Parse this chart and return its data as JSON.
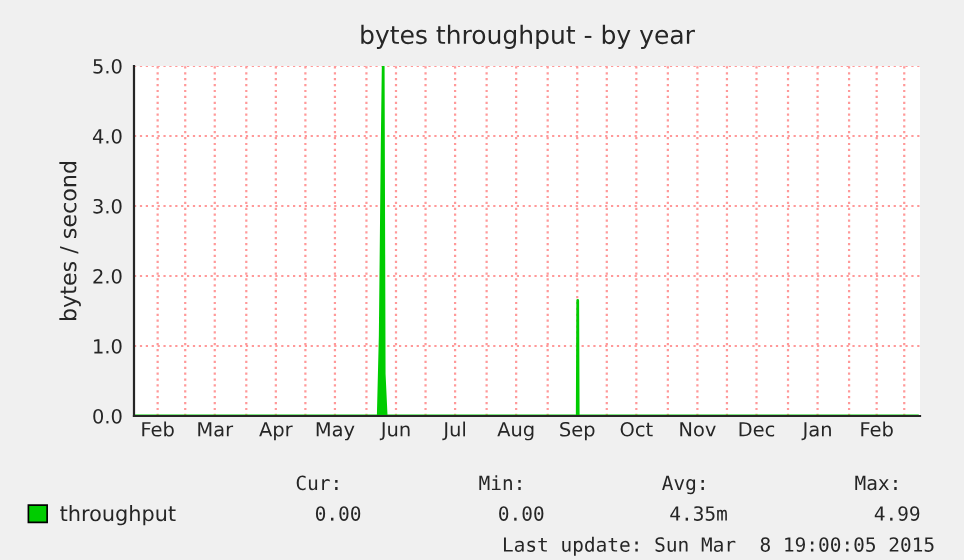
{
  "chart_data": {
    "type": "area",
    "title": "bytes throughput - by year",
    "ylabel": "bytes / second",
    "x": [
      "2014-02-03",
      "2014-06-07",
      "2014-06-08",
      "2014-06-09",
      "2014-06-09T12:00",
      "2014-06-10",
      "2014-06-11",
      "2014-09-16",
      "2014-09-16T06:00",
      "2014-09-16T12:00",
      "2015-03-08"
    ],
    "series": [
      {
        "name": "throughput",
        "color": "#00cc00",
        "values": [
          0,
          0,
          1.15,
          3.9,
          4.99,
          0.6,
          0,
          0,
          1.65,
          0,
          0
        ]
      }
    ],
    "xlim": [
      "2014-02-03",
      "2015-03-09"
    ],
    "xticks": [
      {
        "value": "2014-02-15",
        "label": "Feb"
      },
      {
        "value": "2014-03-16",
        "label": "Mar"
      },
      {
        "value": "2014-04-16",
        "label": "Apr"
      },
      {
        "value": "2014-05-16",
        "label": "May"
      },
      {
        "value": "2014-06-16",
        "label": "Jun"
      },
      {
        "value": "2014-07-16",
        "label": "Jul"
      },
      {
        "value": "2014-08-16",
        "label": "Aug"
      },
      {
        "value": "2014-09-16",
        "label": "Sep"
      },
      {
        "value": "2014-10-16",
        "label": "Oct"
      },
      {
        "value": "2014-11-16",
        "label": "Nov"
      },
      {
        "value": "2014-12-16",
        "label": "Dec"
      },
      {
        "value": "2015-01-16",
        "label": "Jan"
      },
      {
        "value": "2015-02-15",
        "label": "Feb"
      },
      {
        "value": "2014-03-01",
        "label": null
      },
      {
        "value": "2014-04-01",
        "label": null
      },
      {
        "value": "2014-05-01",
        "label": null
      },
      {
        "value": "2014-06-01",
        "label": null
      },
      {
        "value": "2014-07-01",
        "label": null
      },
      {
        "value": "2014-08-01",
        "label": null
      },
      {
        "value": "2014-09-01",
        "label": null
      },
      {
        "value": "2014-10-01",
        "label": null
      },
      {
        "value": "2014-11-01",
        "label": null
      },
      {
        "value": "2014-12-01",
        "label": null
      },
      {
        "value": "2015-01-01",
        "label": null
      },
      {
        "value": "2015-02-01",
        "label": null
      },
      {
        "value": "2015-03-01",
        "label": null
      }
    ],
    "ylim": [
      0,
      5
    ],
    "yticks": [
      {
        "value": 0,
        "label": "0.0"
      },
      {
        "value": 1,
        "label": "1.0"
      },
      {
        "value": 2,
        "label": "2.0"
      },
      {
        "value": 3,
        "label": "3.0"
      },
      {
        "value": 4,
        "label": "4.0"
      },
      {
        "value": 5,
        "label": "5.0"
      }
    ],
    "grid": true,
    "legend": "bottom left",
    "annotations": [
      "Cur:",
      "Min:",
      "Avg:",
      "Max:",
      "0.00",
      "0.00",
      "4.35m",
      "4.99",
      "Last update: Sun Mar  8 19:00:05 2015"
    ]
  }
}
